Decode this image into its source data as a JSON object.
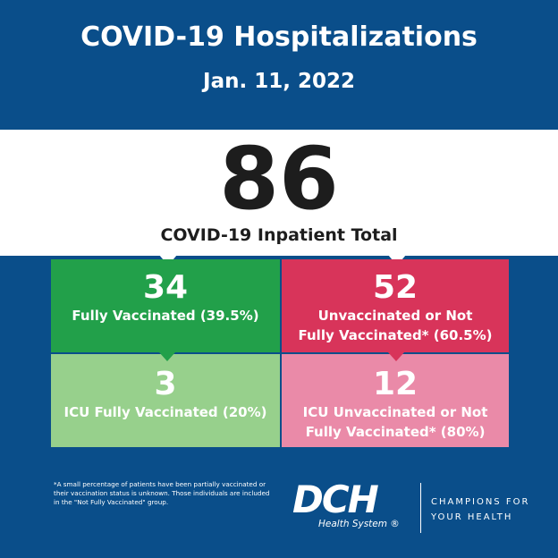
{
  "header": {
    "title": "COVID-19 Hospitalizations",
    "date": "Jan. 11, 2022"
  },
  "total": {
    "number": "86",
    "label": "COVID-19 Inpatient Total"
  },
  "boxes": [
    {
      "number": "34",
      "label_lines": [
        "Fully Vaccinated (39.5%)"
      ],
      "color": "#22a04a"
    },
    {
      "number": "52",
      "label_lines": [
        "Unvaccinated or Not",
        "Fully Vaccinated* (60.5%)"
      ],
      "color": "#d8345a"
    },
    {
      "number": "3",
      "label_lines": [
        "ICU Fully Vaccinated (20%)"
      ],
      "color": "#97d08c"
    },
    {
      "number": "12",
      "label_lines": [
        "ICU Unvaccinated or Not",
        "Fully Vaccinated* (80%)"
      ],
      "color": "#ea8aa8"
    }
  ],
  "footnote": "*A small percentage of patients have been partially vaccinated or their vaccination status is unknown. Those individuals are included in the \"Not Fully Vaccinated\" group.",
  "logo": {
    "mark": "DCH",
    "subtitle": "Health System ®",
    "tagline_lines": [
      "CHAMPIONS FOR",
      "YOUR HEALTH"
    ]
  },
  "colors": {
    "background": "#0a4e8a",
    "band": "#ffffff"
  }
}
